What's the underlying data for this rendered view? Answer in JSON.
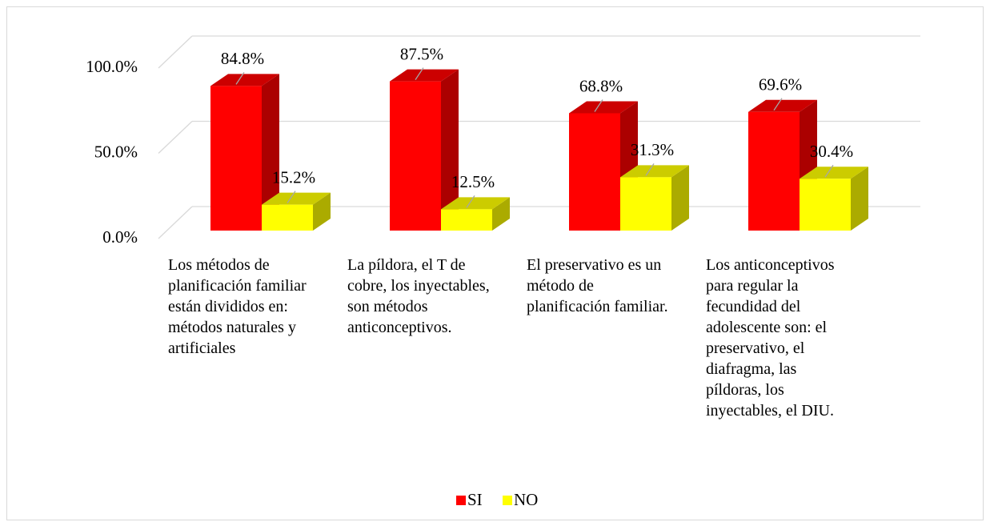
{
  "chart_data": {
    "type": "bar3d",
    "categories": [
      "Los métodos de planificación familiar están divididos en: métodos naturales y artificiales",
      "La píldora, el T de cobre, los inyectables, son métodos anticonceptivos.",
      "El preservativo es un método de planificación familiar.",
      "Los anticonceptivos para regular la fecundidad del adolescente son: el preservativo, el diafragma, las píldoras, los inyectables, el DIU."
    ],
    "series": [
      {
        "name": "SI",
        "color": "#ff0000",
        "values": [
          84.8,
          87.5,
          68.8,
          69.6
        ],
        "value_labels": [
          "84.8%",
          "87.5%",
          "68.8%",
          "69.6%"
        ]
      },
      {
        "name": "NO",
        "color": "#ffff00",
        "values": [
          15.2,
          12.5,
          31.3,
          30.4
        ],
        "value_labels": [
          "15.2%",
          "12.5%",
          "31.3%",
          "30.4%"
        ]
      }
    ],
    "ylim": [
      0,
      100
    ],
    "yticks": [
      {
        "value": 0,
        "label": "0.0%"
      },
      {
        "value": 50,
        "label": "50.0%"
      },
      {
        "value": 100,
        "label": "100.0%"
      }
    ],
    "grid": true,
    "legend": "bottom"
  }
}
